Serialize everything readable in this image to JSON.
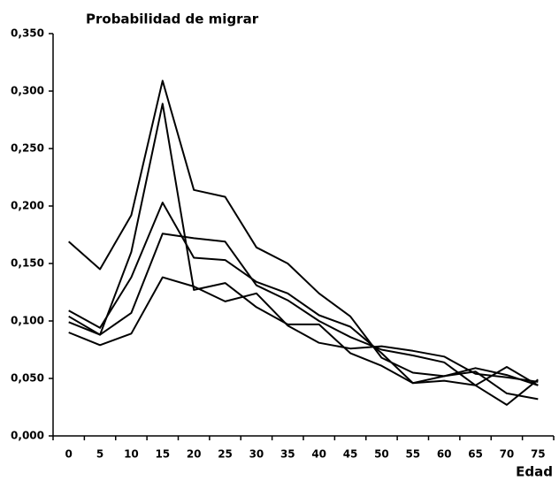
{
  "chart_data": {
    "type": "line",
    "title": "Probabilidad de migrar",
    "x_label": "Edad",
    "categories": [
      "0",
      "5",
      "10",
      "15",
      "20",
      "25",
      "30",
      "35",
      "40",
      "45",
      "50",
      "55",
      "60",
      "65",
      "70",
      "75"
    ],
    "series": [
      {
        "color": "#000000",
        "values": [
          0.169,
          0.145,
          0.192,
          0.309,
          0.214,
          0.208,
          0.164,
          0.15,
          0.124,
          0.104,
          0.068,
          0.055,
          0.052,
          0.059,
          0.053,
          0.044
        ]
      },
      {
        "color": "#000000",
        "values": [
          0.104,
          0.088,
          0.16,
          0.289,
          0.127,
          0.133,
          0.112,
          0.097,
          0.097,
          0.072,
          0.061,
          0.046,
          0.048,
          0.044,
          0.06,
          0.044
        ]
      },
      {
        "color": "#000000",
        "values": [
          0.109,
          0.094,
          0.138,
          0.203,
          0.155,
          0.153,
          0.134,
          0.124,
          0.105,
          0.095,
          0.072,
          0.046,
          0.052,
          0.056,
          0.037,
          0.032
        ]
      },
      {
        "color": "#000000",
        "values": [
          0.099,
          0.088,
          0.107,
          0.176,
          0.172,
          0.169,
          0.131,
          0.118,
          0.1,
          0.086,
          0.075,
          0.07,
          0.064,
          0.044,
          0.027,
          0.049
        ]
      },
      {
        "color": "#000000",
        "values": [
          0.09,
          0.079,
          0.089,
          0.138,
          0.13,
          0.117,
          0.124,
          0.096,
          0.081,
          0.076,
          0.078,
          0.074,
          0.069,
          0.054,
          0.051,
          0.047
        ]
      }
    ],
    "ylim": [
      0,
      0.35
    ],
    "yticks": [
      {
        "value": 0,
        "label": "0,000"
      },
      {
        "value": 0.05,
        "label": "0,050"
      },
      {
        "value": 0.1,
        "label": "0,100"
      },
      {
        "value": 0.15,
        "label": "0,150"
      },
      {
        "value": 0.2,
        "label": "0,200"
      },
      {
        "value": 0.25,
        "label": "0,250"
      },
      {
        "value": 0.3,
        "label": "0,300"
      },
      {
        "value": 0.35,
        "label": "0,350"
      }
    ],
    "grid": false
  }
}
